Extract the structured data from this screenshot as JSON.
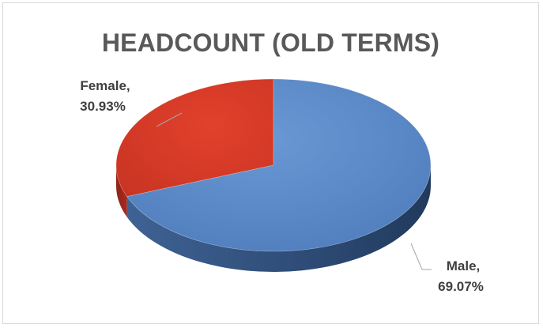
{
  "chart_data": {
    "type": "pie",
    "title": "HEADCOUNT (OLD TERMS)",
    "categories": [
      "Female",
      "Male"
    ],
    "values": [
      30.93,
      69.07
    ],
    "labels": [
      "Female,",
      "Male,"
    ],
    "percent_labels": [
      "30.93%",
      "69.07%"
    ],
    "colors": [
      "#d63c2a",
      "#5a87c6"
    ]
  }
}
